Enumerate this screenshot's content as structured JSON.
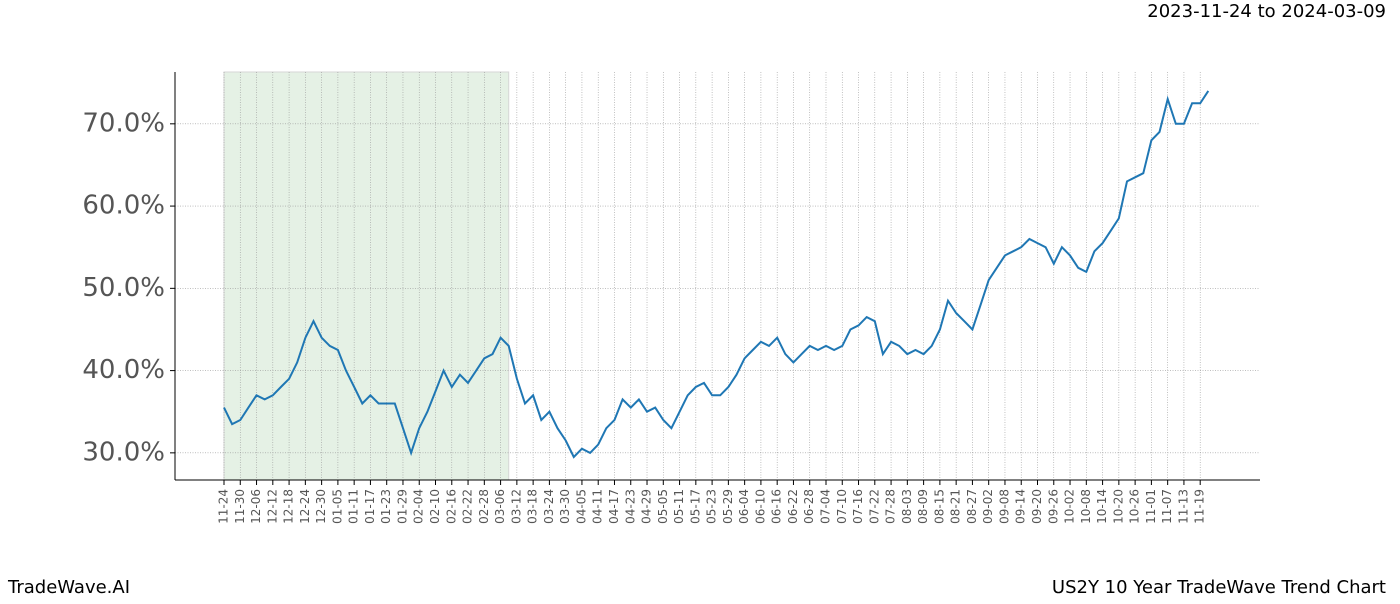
{
  "chart_data": {
    "type": "line",
    "title": "2023-11-24 to 2024-03-09",
    "footer_left": "TradeWave.AI",
    "footer_right": "US2Y 10 Year TradeWave Trend Chart",
    "categories": [
      "11-24",
      null,
      "11-30",
      null,
      "12-06",
      null,
      "12-12",
      null,
      "12-18",
      null,
      "12-24",
      null,
      "12-30",
      null,
      "01-05",
      null,
      "01-11",
      null,
      "01-17",
      null,
      "01-23",
      null,
      "01-29",
      null,
      "02-04",
      null,
      "02-10",
      null,
      "02-16",
      null,
      "02-22",
      null,
      "02-28",
      null,
      "03-06",
      null,
      "03-12",
      null,
      "03-18",
      null,
      "03-24",
      null,
      "03-30",
      null,
      "04-05",
      null,
      "04-11",
      null,
      "04-17",
      null,
      "04-23",
      null,
      "04-29",
      null,
      "05-05",
      null,
      "05-11",
      null,
      "05-17",
      null,
      "05-23",
      null,
      "05-29",
      null,
      "06-04",
      null,
      "06-10",
      null,
      "06-16",
      null,
      "06-22",
      null,
      "06-28",
      null,
      "07-04",
      null,
      "07-10",
      null,
      "07-16",
      null,
      "07-22",
      null,
      "07-28",
      null,
      "08-03",
      null,
      "08-09",
      null,
      "08-15",
      null,
      "08-21",
      null,
      "08-27",
      null,
      "09-02",
      null,
      "09-08",
      null,
      "09-14",
      null,
      "09-20",
      null,
      "09-26",
      null,
      "10-02",
      null,
      "10-08",
      null,
      "10-14",
      null,
      "10-20",
      null,
      "10-26",
      null,
      "11-01",
      null,
      "11-07",
      null,
      "11-13",
      null,
      "11-19",
      null
    ],
    "values": [
      35.5,
      33.5,
      34,
      35.5,
      37,
      36.5,
      37,
      38,
      39,
      41,
      44,
      46,
      44,
      43,
      42.5,
      40,
      38,
      36,
      37,
      36,
      36,
      36,
      33,
      30,
      33,
      35,
      37.5,
      40,
      38,
      39.5,
      38.5,
      40,
      41.5,
      42,
      44,
      43,
      39,
      36,
      37,
      34,
      35,
      33,
      31.5,
      29.5,
      30.5,
      30,
      31,
      33,
      34,
      36.5,
      35.5,
      36.5,
      35,
      35.5,
      34,
      33,
      35,
      37,
      38,
      38.5,
      37,
      37,
      38,
      39.5,
      41.5,
      42.5,
      43.5,
      43,
      44,
      42,
      41,
      42,
      43,
      42.5,
      43,
      42.5,
      43,
      45,
      45.5,
      46.5,
      46,
      42,
      43.5,
      43,
      42,
      42.5,
      42,
      43,
      45,
      48.5,
      47,
      46,
      45,
      48,
      51,
      52.5,
      54,
      54.5,
      55,
      56,
      55.5,
      55,
      53,
      55,
      54,
      52.5,
      52,
      54.5,
      55.5,
      57,
      58.5,
      63,
      63.5,
      64,
      68,
      69,
      73,
      70,
      70,
      72.5,
      72.5,
      74
    ],
    "color": "#1f77b4",
    "shade": {
      "from": 0,
      "to": 35,
      "color": "#d5e8d4"
    },
    "ylim": [
      26.7,
      76.3
    ],
    "yticks": [
      {
        "value": 30,
        "label": "30.0%"
      },
      {
        "value": 40,
        "label": "40.0%"
      },
      {
        "value": 50,
        "label": "50.0%"
      },
      {
        "value": 60,
        "label": "60.0%"
      },
      {
        "value": 70,
        "label": "70.0%"
      }
    ],
    "grid": true
  }
}
